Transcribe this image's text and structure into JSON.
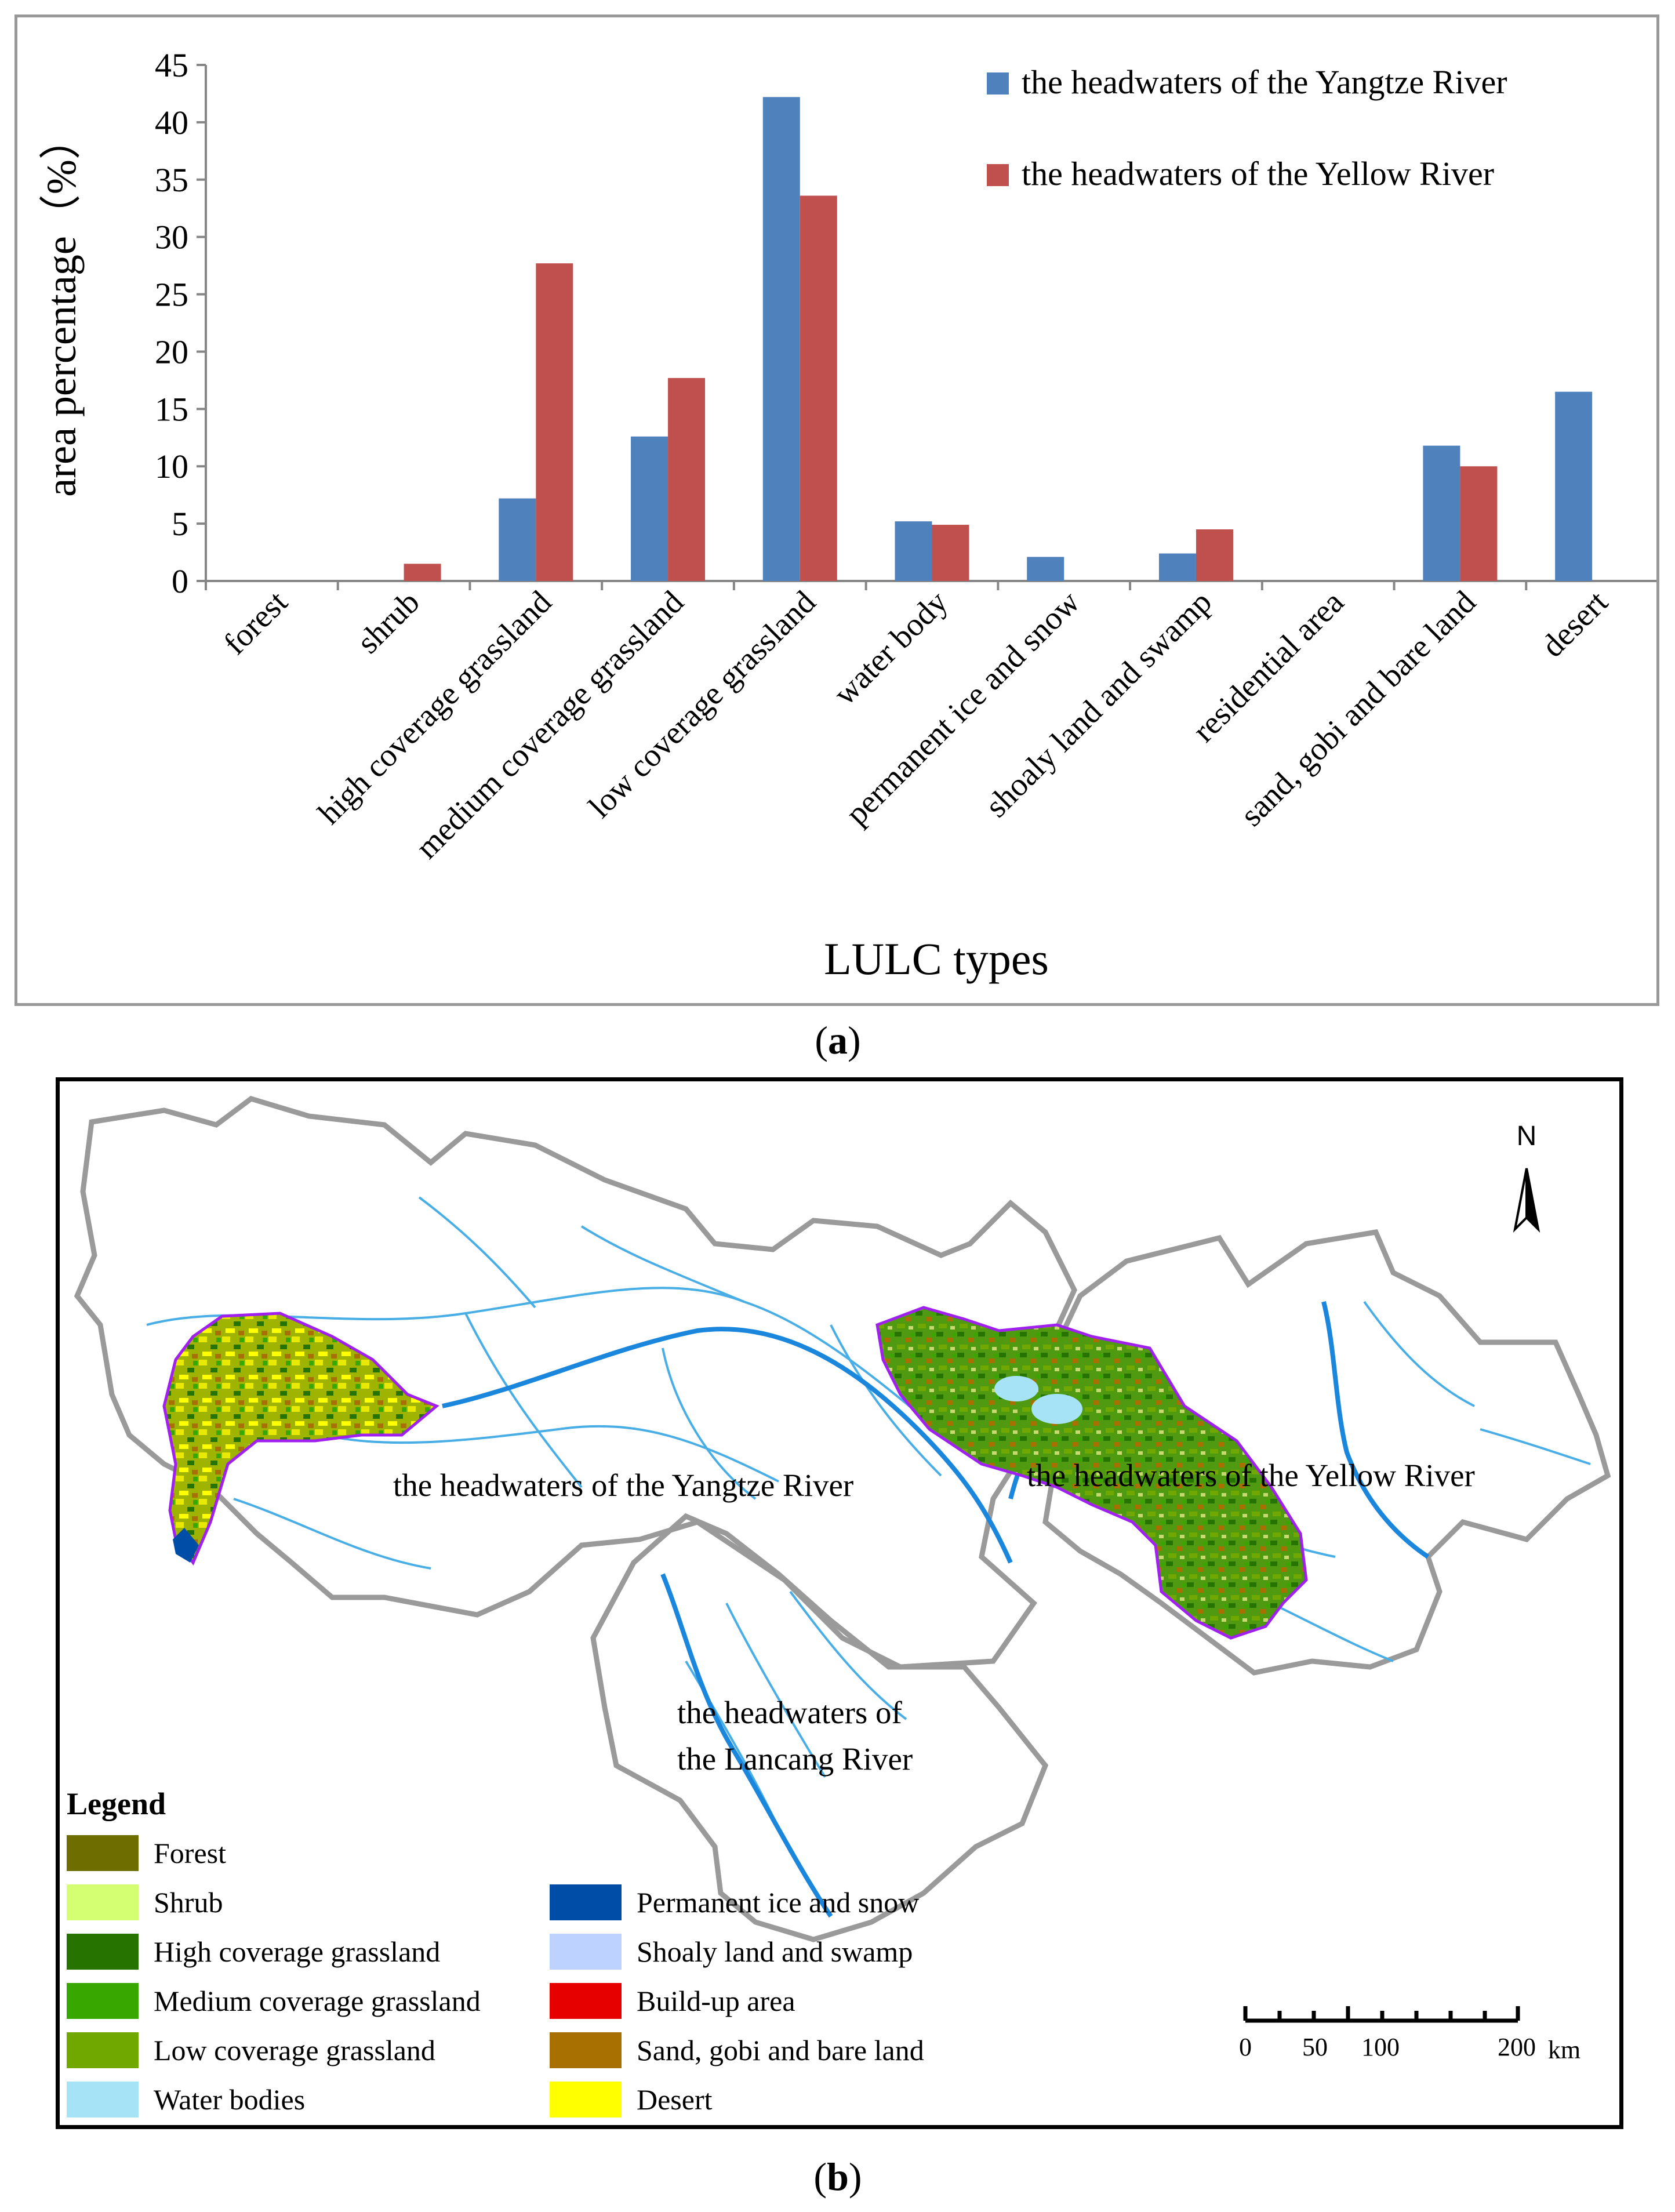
{
  "panel_a": {
    "caption": "a"
  },
  "panel_b": {
    "caption": "b",
    "north_label": "N",
    "legend_title": "Legend",
    "legend_items": [
      {
        "label": "Forest",
        "color": "#6e6e00"
      },
      {
        "label": "Shrub",
        "color": "#d4ff73"
      },
      {
        "label": "High coverage grassland",
        "color": "#267300"
      },
      {
        "label": "Medium coverage grassland",
        "color": "#38a800"
      },
      {
        "label": "Low coverage grassland",
        "color": "#70a800"
      },
      {
        "label": "Water bodies",
        "color": "#a6e3f7"
      },
      {
        "label": "Permanent ice and snow",
        "color": "#004da8"
      },
      {
        "label": "Shoaly land and swamp",
        "color": "#bed2ff"
      },
      {
        "label": "Build-up area",
        "color": "#e60000"
      },
      {
        "label": "Sand, gobi and bare land",
        "color": "#a87000"
      },
      {
        "label": "Desert",
        "color": "#ffff00"
      }
    ],
    "region_labels": {
      "yangtze": "the headwaters of the Yangtze River",
      "yellow": "the headwaters of the Yellow River",
      "lancang_line1": "the headwaters of",
      "lancang_line2": "the Lancang River"
    },
    "scale_bar": {
      "ticks": [
        "0",
        "50",
        "100",
        "200"
      ],
      "unit": "km"
    }
  },
  "chart_data": {
    "type": "bar",
    "categories": [
      "forest",
      "shrub",
      "high coverage grassland",
      "medium coverage grassland",
      "low coverage grassland",
      "water body",
      "permanent ice and snow",
      "shoaly land and swamp",
      "residential area",
      "sand, gobi and bare land",
      "desert"
    ],
    "series": [
      {
        "name": "the headwaters of the Yangtze River",
        "color": "#4f81bd",
        "values": [
          0,
          0,
          7.2,
          12.6,
          42.2,
          5.2,
          2.1,
          2.4,
          0,
          11.8,
          16.5
        ]
      },
      {
        "name": "the headwaters of the Yellow River",
        "color": "#c0504d",
        "values": [
          0,
          1.5,
          27.7,
          17.7,
          33.6,
          4.9,
          0,
          4.5,
          0,
          10.0,
          0
        ]
      }
    ],
    "xlabel": "LULC types",
    "ylabel": "area percentage（%）",
    "ylim": [
      0,
      45
    ],
    "yticks": [
      "0",
      "5",
      "10",
      "15",
      "20",
      "25",
      "30",
      "35",
      "40",
      "45"
    ],
    "legend_position": "top-right",
    "grid": false
  }
}
